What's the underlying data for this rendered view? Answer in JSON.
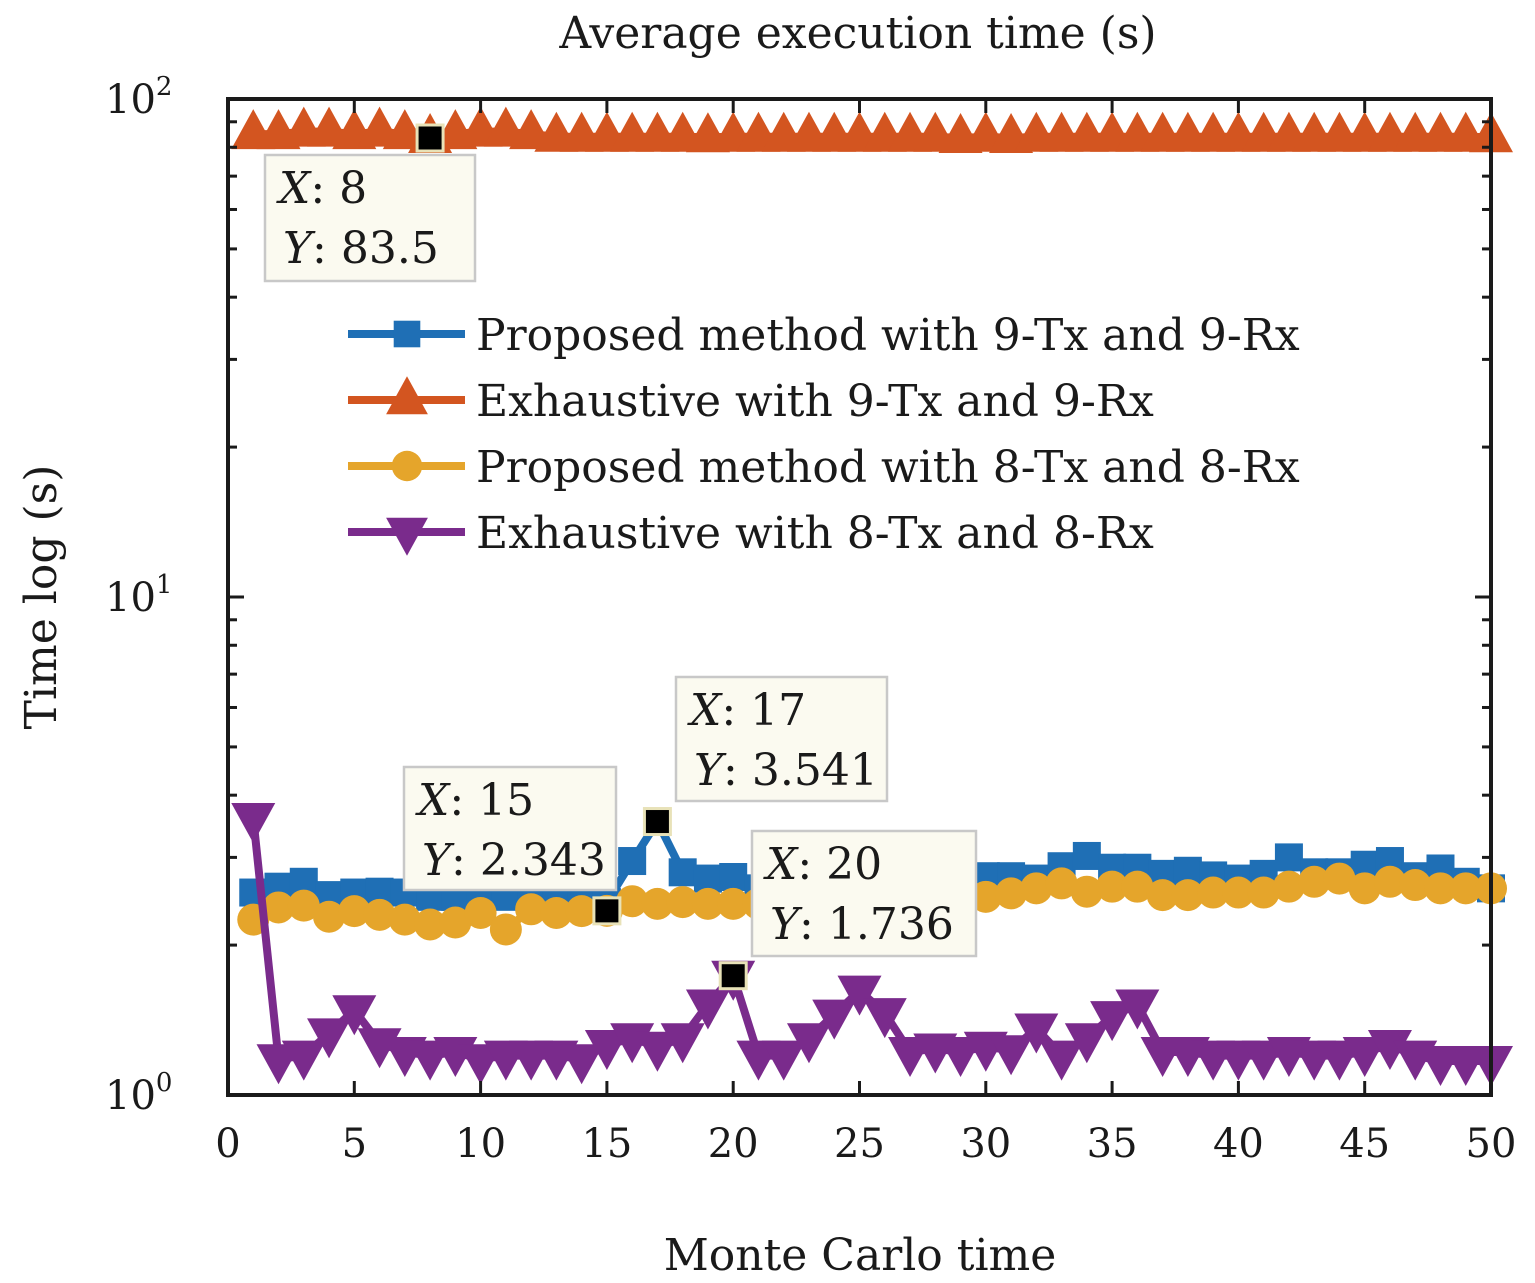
{
  "chart_data": {
    "type": "line",
    "title": "Average execution time (s)",
    "xlabel": "Monte Carlo time",
    "ylabel": "Time log (s)",
    "xscale": "linear",
    "yscale": "log",
    "xlim": [
      0,
      50
    ],
    "ylim": [
      1,
      100
    ],
    "grid": false,
    "legend_position": "center-right",
    "x_ticks": [
      0,
      5,
      10,
      15,
      20,
      25,
      30,
      35,
      40,
      45,
      50
    ],
    "x_tick_labels": [
      "0",
      "5",
      "10",
      "15",
      "20",
      "25",
      "30",
      "35",
      "40",
      "45",
      "50"
    ],
    "y_ticks": [
      1,
      10,
      100
    ],
    "y_tick_labels": [
      {
        "base": "10",
        "exp": "0"
      },
      {
        "base": "10",
        "exp": "1"
      },
      {
        "base": "10",
        "exp": "2"
      }
    ],
    "x": [
      1,
      2,
      3,
      4,
      5,
      6,
      7,
      8,
      9,
      10,
      11,
      12,
      13,
      14,
      15,
      16,
      17,
      18,
      19,
      20,
      21,
      22,
      23,
      24,
      25,
      26,
      27,
      28,
      29,
      30,
      31,
      32,
      33,
      34,
      35,
      36,
      37,
      38,
      39,
      40,
      41,
      42,
      43,
      44,
      45,
      46,
      47,
      48,
      49,
      50
    ],
    "series": [
      {
        "name": "Proposed method with 9-Tx and 9-Rx",
        "color": "#1f6fb5",
        "marker": "square",
        "values": [
          2.55,
          2.62,
          2.68,
          2.52,
          2.55,
          2.56,
          2.55,
          2.5,
          2.5,
          2.48,
          2.5,
          2.45,
          2.42,
          2.42,
          2.44,
          2.95,
          3.541,
          2.8,
          2.72,
          2.74,
          2.6,
          2.62,
          2.65,
          2.7,
          2.68,
          2.7,
          2.72,
          2.72,
          2.7,
          2.75,
          2.75,
          2.72,
          2.88,
          3.02,
          2.86,
          2.86,
          2.78,
          2.82,
          2.76,
          2.72,
          2.78,
          3.0,
          2.8,
          2.8,
          2.9,
          2.95,
          2.75,
          2.85,
          2.68,
          2.6
        ]
      },
      {
        "name": "Exhaustive with 9-Tx and 9-Rx",
        "color": "#d35520",
        "marker": "triangle-up",
        "values": [
          85,
          85,
          86,
          86,
          85,
          86,
          85,
          83.5,
          85,
          86,
          86,
          85,
          84,
          84,
          84,
          84,
          84,
          84,
          83.8,
          84,
          84,
          84,
          84,
          84,
          84,
          84,
          84,
          84,
          83.5,
          84,
          83.5,
          84,
          84,
          84,
          84,
          84,
          84,
          84,
          84,
          84,
          84,
          84,
          84,
          84,
          84,
          84,
          84,
          84,
          84,
          83.8
        ]
      },
      {
        "name": "Proposed method with 8-Tx and 8-Rx",
        "color": "#e5a52b",
        "marker": "circle",
        "values": [
          2.25,
          2.38,
          2.4,
          2.28,
          2.34,
          2.3,
          2.25,
          2.2,
          2.22,
          2.32,
          2.15,
          2.36,
          2.32,
          2.34,
          2.343,
          2.45,
          2.42,
          2.44,
          2.42,
          2.42,
          2.42,
          2.42,
          2.42,
          2.42,
          2.42,
          2.42,
          2.42,
          2.42,
          2.42,
          2.5,
          2.54,
          2.6,
          2.66,
          2.56,
          2.62,
          2.62,
          2.52,
          2.52,
          2.55,
          2.55,
          2.55,
          2.62,
          2.68,
          2.72,
          2.6,
          2.68,
          2.64,
          2.6,
          2.6,
          2.6
        ]
      },
      {
        "name": "Exhaustive with 8-Tx and 8-Rx",
        "color": "#7a2b8c",
        "marker": "triangle-down",
        "values": [
          3.6,
          1.18,
          1.2,
          1.33,
          1.48,
          1.27,
          1.22,
          1.2,
          1.22,
          1.18,
          1.2,
          1.2,
          1.2,
          1.18,
          1.26,
          1.3,
          1.25,
          1.3,
          1.52,
          1.736,
          1.2,
          1.2,
          1.3,
          1.45,
          1.62,
          1.46,
          1.22,
          1.24,
          1.22,
          1.25,
          1.23,
          1.36,
          1.2,
          1.3,
          1.44,
          1.52,
          1.22,
          1.22,
          1.2,
          1.2,
          1.2,
          1.22,
          1.2,
          1.2,
          1.22,
          1.26,
          1.2,
          1.17,
          1.17,
          1.17
        ]
      }
    ],
    "annotations": [
      {
        "series": "Exhaustive with 9-Tx and 9-Rx",
        "x_label": "X",
        "x_value": "8",
        "y_label": "Y",
        "y_value": "83.5",
        "x": 8,
        "y": 83.5
      },
      {
        "series": "Proposed method with 8-Tx and 8-Rx",
        "x_label": "X",
        "x_value": "15",
        "y_label": "Y",
        "y_value": "2.343",
        "x": 15,
        "y": 2.343
      },
      {
        "series": "Proposed method with 9-Tx and 9-Rx",
        "x_label": "X",
        "x_value": "17",
        "y_label": "Y",
        "y_value": "3.541",
        "x": 17,
        "y": 3.541
      },
      {
        "series": "Exhaustive with 8-Tx and 8-Rx",
        "x_label": "X",
        "x_value": "20",
        "y_label": "Y",
        "y_value": "1.736",
        "x": 20,
        "y": 1.736
      }
    ]
  }
}
